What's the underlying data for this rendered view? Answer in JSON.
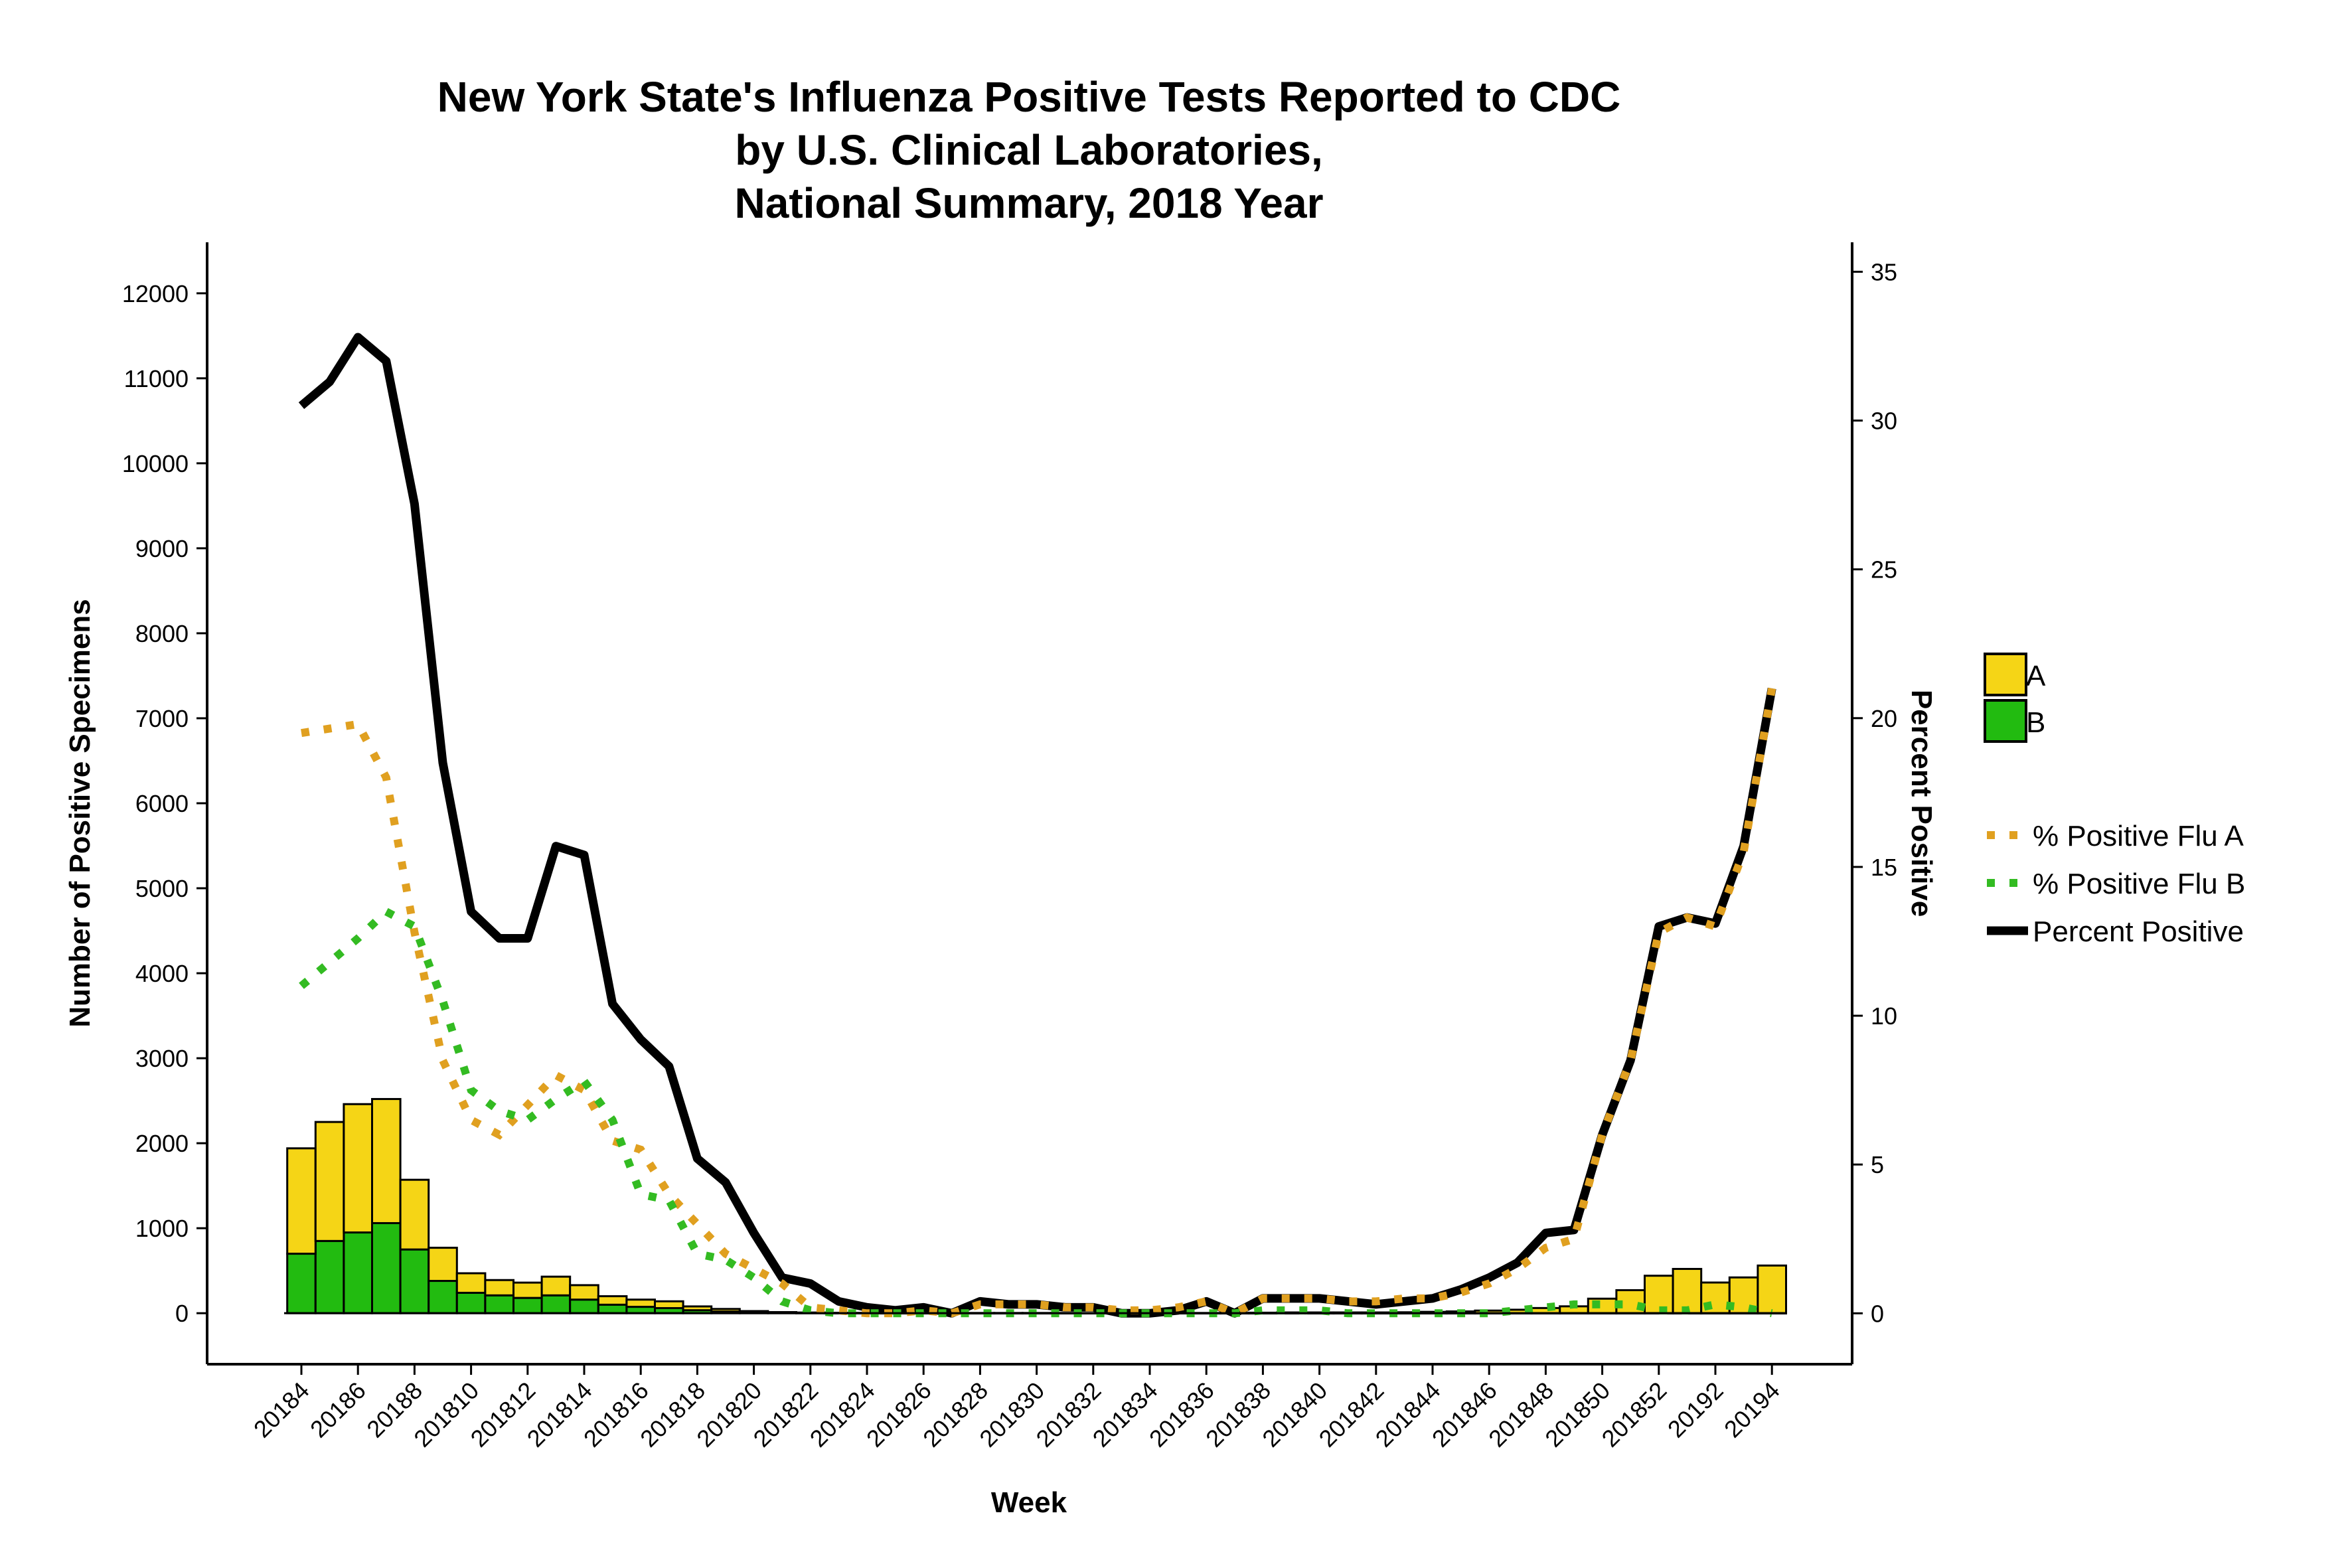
{
  "chart_data": {
    "type": "bar",
    "title_lines": [
      "New York State's Influenza Positive Tests Reported to CDC",
      "by U.S. Clinical Laboratories,",
      "National Summary, 2018 Year"
    ],
    "xlabel": "Week",
    "ylabel": "Number of Positive Specimens",
    "y2label": "Percent Positive",
    "ylim": [
      -600,
      12600
    ],
    "y2lim": [
      -1.71,
      35.99
    ],
    "yticks": [
      0,
      1000,
      2000,
      3000,
      4000,
      5000,
      6000,
      7000,
      8000,
      9000,
      10000,
      11000,
      12000
    ],
    "y2ticks": [
      0,
      5,
      10,
      15,
      20,
      25,
      30,
      35
    ],
    "xticks": [
      "201884",
      "201886",
      "201888",
      "2018810",
      "2018812",
      "2018814",
      "2018816",
      "2018818",
      "2018820",
      "2018822",
      "2018824",
      "2018826",
      "2018828",
      "2018830",
      "2018832",
      "2018834",
      "2018836",
      "2018838",
      "2018840",
      "2018842",
      "2018844",
      "2018846",
      "2018848",
      "2018850",
      "2018852",
      "201892",
      "201894"
    ],
    "xtick_labels": [
      "20184",
      "20186",
      "20188",
      "201810",
      "201812",
      "201814",
      "201816",
      "201818",
      "201820",
      "201822",
      "201824",
      "201826",
      "201828",
      "201830",
      "201832",
      "201834",
      "201836",
      "201838",
      "201840",
      "201842",
      "201844",
      "201846",
      "201848",
      "201850",
      "201852",
      "20192",
      "20194"
    ],
    "weeks": [
      "20184",
      "20185",
      "20186",
      "20187",
      "20188",
      "20189",
      "201810",
      "201811",
      "201812",
      "201813",
      "201814",
      "201815",
      "201816",
      "201817",
      "201818",
      "201819",
      "201820",
      "201821",
      "201822",
      "201823",
      "201824",
      "201825",
      "201826",
      "201827",
      "201828",
      "201829",
      "201830",
      "201831",
      "201832",
      "201833",
      "201834",
      "201835",
      "201836",
      "201837",
      "201838",
      "201839",
      "201840",
      "201841",
      "201842",
      "201843",
      "201844",
      "201845",
      "201846",
      "201847",
      "201848",
      "201849",
      "201850",
      "201851",
      "201852",
      "20191",
      "20192",
      "20193",
      "20194"
    ],
    "stacked_bars": [
      {
        "name": "B",
        "color": "#22bb10",
        "values": [
          700,
          850,
          950,
          1060,
          750,
          380,
          240,
          210,
          180,
          210,
          160,
          100,
          75,
          60,
          35,
          20,
          10,
          5,
          3,
          2,
          2,
          1,
          1,
          1,
          1,
          1,
          1,
          1,
          1,
          1,
          1,
          1,
          1,
          1,
          1,
          1,
          1,
          1,
          1,
          1,
          1,
          1,
          1,
          1,
          1,
          1,
          1,
          1,
          1,
          1,
          1,
          1,
          1
        ]
      },
      {
        "name": "A",
        "color": "#f5d516",
        "values": [
          1240,
          1400,
          1510,
          1460,
          820,
          390,
          230,
          180,
          180,
          220,
          170,
          100,
          85,
          80,
          45,
          30,
          15,
          8,
          5,
          3,
          2,
          2,
          2,
          1,
          2,
          2,
          2,
          2,
          1,
          1,
          2,
          3,
          2,
          3,
          5,
          8,
          8,
          8,
          8,
          10,
          15,
          20,
          30,
          40,
          60,
          80,
          170,
          270,
          440,
          520,
          360,
          420,
          560
        ]
      }
    ],
    "series": [
      {
        "name": "% Positive Flu A",
        "color": "#e0a020",
        "style": "dotted",
        "values": [
          19.5,
          null,
          19.8,
          18.0,
          12.8,
          8.5,
          6.5,
          6.0,
          7.0,
          8.0,
          7.5,
          5.8,
          5.5,
          4.0,
          3.0,
          2.0,
          1.5,
          1.0,
          0.2,
          0.1,
          0.0,
          0.0,
          0.1,
          0.0,
          0.3,
          0.3,
          0.3,
          0.2,
          0.2,
          0.1,
          0.1,
          0.2,
          0.4,
          0.0,
          0.5,
          0.5,
          0.5,
          0.4,
          0.4,
          0.5,
          0.5,
          0.7,
          1.0,
          1.5,
          2.2,
          2.5,
          6.0,
          8.5,
          12.8,
          13.3,
          13.0,
          15.5,
          21.0
        ]
      },
      {
        "name": "% Positive Flu B",
        "color": "#33bb22",
        "style": "dotted",
        "values": [
          11.0,
          11.8,
          12.6,
          13.5,
          13.0,
          10.5,
          7.5,
          6.8,
          6.5,
          7.2,
          7.8,
          6.5,
          4.0,
          3.8,
          2.0,
          1.8,
          1.2,
          0.4,
          0.1,
          0.0,
          0.0,
          0.0,
          0.0,
          0.0,
          0.0,
          0.0,
          0.0,
          0.0,
          0.0,
          0.0,
          0.0,
          0.0,
          0.0,
          0.0,
          0.1,
          0.1,
          0.1,
          0.0,
          0.0,
          0.0,
          0.0,
          0.0,
          0.0,
          0.1,
          0.2,
          0.3,
          0.3,
          0.3,
          0.1,
          0.1,
          0.3,
          0.2,
          0.0
        ]
      },
      {
        "name": "Percent Positive",
        "color": "#000000",
        "style": "solid",
        "values": [
          30.5,
          31.3,
          32.8,
          32.0,
          27.2,
          18.5,
          13.5,
          12.6,
          12.6,
          15.7,
          15.4,
          10.4,
          9.2,
          8.3,
          5.2,
          4.4,
          2.7,
          1.2,
          1.0,
          0.4,
          0.2,
          0.1,
          0.2,
          0.0,
          0.4,
          0.3,
          0.3,
          0.2,
          0.2,
          0.0,
          0.0,
          0.1,
          0.4,
          0.0,
          0.5,
          0.5,
          0.5,
          0.4,
          0.3,
          0.4,
          0.5,
          0.8,
          1.2,
          1.7,
          2.7,
          2.8,
          6.0,
          8.5,
          13.0,
          13.3,
          13.1,
          15.7,
          21.0
        ]
      }
    ],
    "legend": {
      "bars": [
        {
          "label": "A",
          "color": "#f5d516"
        },
        {
          "label": "B",
          "color": "#22bb10"
        }
      ],
      "lines": [
        {
          "label": "% Positive Flu A",
          "color": "#e0a020",
          "style": "dotted"
        },
        {
          "label": "% Positive Flu B",
          "color": "#33bb22",
          "style": "dotted"
        },
        {
          "label": "Percent Positive",
          "color": "#000000",
          "style": "solid"
        }
      ],
      "placement": "right"
    },
    "grid": false
  }
}
